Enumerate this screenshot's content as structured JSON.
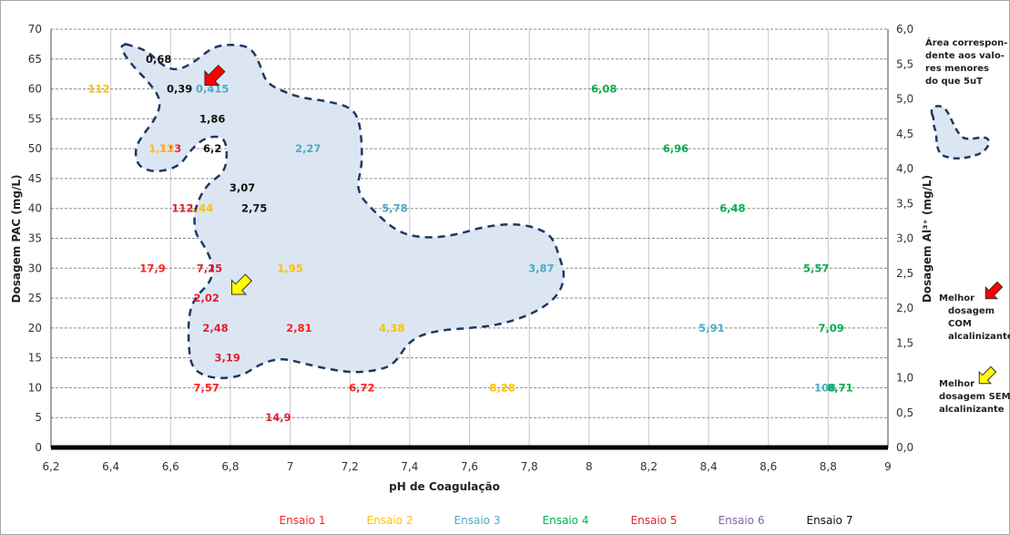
{
  "chart_data": {
    "type": "scatter",
    "xlabel": "pH de Coagulação",
    "ylabel": "Dosagem  PAC (mg/L)",
    "y2label": "Dosagem Al³⁺ (mg/L)",
    "xlim": [
      6.2,
      9
    ],
    "ylim": [
      0,
      70
    ],
    "y2lim": [
      0,
      6
    ],
    "grid": true,
    "x_ticks": [
      "6,2",
      "6,4",
      "6,6",
      "6,8",
      "7",
      "7,2",
      "7,4",
      "7,6",
      "7,8",
      "8",
      "8,2",
      "8,4",
      "8,6",
      "8,8",
      "9"
    ],
    "y_ticks": [
      "0",
      "5",
      "10",
      "15",
      "20",
      "25",
      "30",
      "35",
      "40",
      "45",
      "50",
      "55",
      "60",
      "65",
      "70"
    ],
    "y2_ticks": [
      "0,0",
      "0,5",
      "1,0",
      "1,5",
      "2,0",
      "2,5",
      "3,0",
      "3,5",
      "4,0",
      "4,5",
      "5,0",
      "5,5",
      "6,0"
    ],
    "series": [
      {
        "name": "Ensaio 1",
        "color": "#ff2020",
        "points": [
          {
            "x": 6.6,
            "y": 50,
            "label": "113"
          },
          {
            "x": 6.54,
            "y": 30,
            "label": "17,9"
          },
          {
            "x": 6.72,
            "y": 10,
            "label": "7,57"
          },
          {
            "x": 7.03,
            "y": 20,
            "label": "2,81"
          },
          {
            "x": 7.24,
            "y": 10,
            "label": "6,72"
          }
        ]
      },
      {
        "name": "Ensaio 2",
        "color": "#ffc000",
        "points": [
          {
            "x": 6.36,
            "y": 60,
            "label": "112"
          },
          {
            "x": 6.57,
            "y": 50,
            "label": "1,12"
          },
          {
            "x": 6.7,
            "y": 40,
            "label": "1,44"
          },
          {
            "x": 7.0,
            "y": 30,
            "label": "1,95"
          },
          {
            "x": 7.34,
            "y": 20,
            "label": "4,38"
          },
          {
            "x": 7.71,
            "y": 10,
            "label": "8,28"
          }
        ]
      },
      {
        "name": "Ensaio 3",
        "color": "#4bacc6",
        "points": [
          {
            "x": 6.74,
            "y": 60,
            "label": "0,415"
          },
          {
            "x": 7.06,
            "y": 50,
            "label": "2,27"
          },
          {
            "x": 7.35,
            "y": 40,
            "label": "5,78"
          },
          {
            "x": 7.84,
            "y": 30,
            "label": "3,87"
          },
          {
            "x": 8.41,
            "y": 20,
            "label": "5,91"
          },
          {
            "x": 8.79,
            "y": 10,
            "label": "108"
          }
        ]
      },
      {
        "name": "Ensaio 4",
        "color": "#00b050",
        "points": [
          {
            "x": 8.05,
            "y": 60,
            "label": "6,08"
          },
          {
            "x": 8.29,
            "y": 50,
            "label": "6,96"
          },
          {
            "x": 8.48,
            "y": 40,
            "label": "6,48"
          },
          {
            "x": 8.76,
            "y": 30,
            "label": "5,57"
          },
          {
            "x": 8.81,
            "y": 20,
            "label": "7,09"
          },
          {
            "x": 8.84,
            "y": 10,
            "label": "8,71"
          }
        ]
      },
      {
        "name": "Ensaio 5",
        "color": "#e02030",
        "points": [
          {
            "x": 6.64,
            "y": 40,
            "label": "112"
          },
          {
            "x": 6.73,
            "y": 30,
            "label": "7,25"
          },
          {
            "x": 6.72,
            "y": 25,
            "label": "2,02"
          },
          {
            "x": 6.75,
            "y": 20,
            "label": "2,48"
          },
          {
            "x": 6.79,
            "y": 15,
            "label": "3,19"
          },
          {
            "x": 6.96,
            "y": 5,
            "label": "14,9"
          }
        ]
      },
      {
        "name": "Ensaio 6",
        "color": "#8064a2",
        "points": []
      },
      {
        "name": "Ensaio 7",
        "color": "#111111",
        "points": [
          {
            "x": 6.56,
            "y": 65,
            "label": "0,68"
          },
          {
            "x": 6.63,
            "y": 60,
            "label": "0,39"
          },
          {
            "x": 6.74,
            "y": 55,
            "label": "1,86"
          },
          {
            "x": 6.74,
            "y": 50,
            "label": "6,2"
          },
          {
            "x": 6.84,
            "y": 43.5,
            "label": "3,07"
          },
          {
            "x": 6.88,
            "y": 40,
            "label": "2,75"
          }
        ]
      }
    ],
    "region": {
      "fill": "#dce6f2",
      "stroke": "#1f3864",
      "boundary": [
        [
          6.45,
          67.5
        ],
        [
          6.52,
          66.5
        ],
        [
          6.57,
          64
        ],
        [
          6.62,
          63
        ],
        [
          6.68,
          64.5
        ],
        [
          6.74,
          67
        ],
        [
          6.8,
          67.5
        ],
        [
          6.87,
          67
        ],
        [
          6.9,
          64
        ],
        [
          6.92,
          61
        ],
        [
          6.98,
          59.5
        ],
        [
          7.04,
          58.5
        ],
        [
          7.12,
          58
        ],
        [
          7.2,
          57
        ],
        [
          7.23,
          55
        ],
        [
          7.24,
          51
        ],
        [
          7.24,
          47
        ],
        [
          7.22,
          43
        ],
        [
          7.28,
          39.5
        ],
        [
          7.36,
          36
        ],
        [
          7.45,
          35
        ],
        [
          7.55,
          35.5
        ],
        [
          7.65,
          37
        ],
        [
          7.76,
          37.5
        ],
        [
          7.84,
          36.5
        ],
        [
          7.88,
          35
        ],
        [
          7.9,
          32
        ],
        [
          7.92,
          29
        ],
        [
          7.9,
          25.5
        ],
        [
          7.82,
          22.5
        ],
        [
          7.7,
          20.5
        ],
        [
          7.6,
          20
        ],
        [
          7.48,
          19.5
        ],
        [
          7.4,
          18
        ],
        [
          7.35,
          14
        ],
        [
          7.3,
          13
        ],
        [
          7.22,
          12.5
        ],
        [
          7.14,
          13
        ],
        [
          7.05,
          14
        ],
        [
          6.97,
          15
        ],
        [
          6.9,
          14
        ],
        [
          6.84,
          12
        ],
        [
          6.77,
          11.5
        ],
        [
          6.71,
          12
        ],
        [
          6.67,
          13.5
        ],
        [
          6.66,
          17
        ],
        [
          6.66,
          22
        ],
        [
          6.68,
          25
        ],
        [
          6.74,
          28
        ],
        [
          6.74,
          31
        ],
        [
          6.71,
          34
        ],
        [
          6.68,
          36
        ],
        [
          6.68,
          40
        ],
        [
          6.72,
          44
        ],
        [
          6.78,
          46
        ],
        [
          6.79,
          49
        ],
        [
          6.78,
          52
        ],
        [
          6.72,
          52
        ],
        [
          6.67,
          50
        ],
        [
          6.63,
          47
        ],
        [
          6.55,
          46
        ],
        [
          6.49,
          47
        ],
        [
          6.48,
          50
        ],
        [
          6.51,
          52.5
        ],
        [
          6.55,
          55
        ],
        [
          6.57,
          58
        ],
        [
          6.53,
          61
        ],
        [
          6.47,
          64
        ],
        [
          6.43,
          67
        ],
        [
          6.45,
          67.5
        ]
      ]
    },
    "arrows": [
      {
        "name": "red-arrow",
        "color": "#ff0000",
        "x": 6.7,
        "y": 60.5
      },
      {
        "name": "yellow-arrow",
        "color": "#ffff00",
        "x": 6.79,
        "y": 25.5
      }
    ]
  },
  "side_panel": {
    "region_note": [
      "Área correspon-",
      "dente aos valo-",
      "res menores",
      "do que 5uT"
    ],
    "best_with": [
      "Melhor",
      "dosagem",
      "COM",
      "alcalinizante"
    ],
    "best_without": [
      "Melhor",
      "dosagem SEM",
      "alcalinizante"
    ]
  },
  "legend": {
    "items": [
      {
        "label": "Ensaio 1",
        "color": "#ff2020"
      },
      {
        "label": "Ensaio 2",
        "color": "#ffc000"
      },
      {
        "label": "Ensaio 3",
        "color": "#4bacc6"
      },
      {
        "label": "Ensaio 4",
        "color": "#00b050"
      },
      {
        "label": "Ensaio 5",
        "color": "#e02030"
      },
      {
        "label": "Ensaio 6",
        "color": "#8064a2"
      },
      {
        "label": "Ensaio 7",
        "color": "#111111"
      }
    ]
  }
}
